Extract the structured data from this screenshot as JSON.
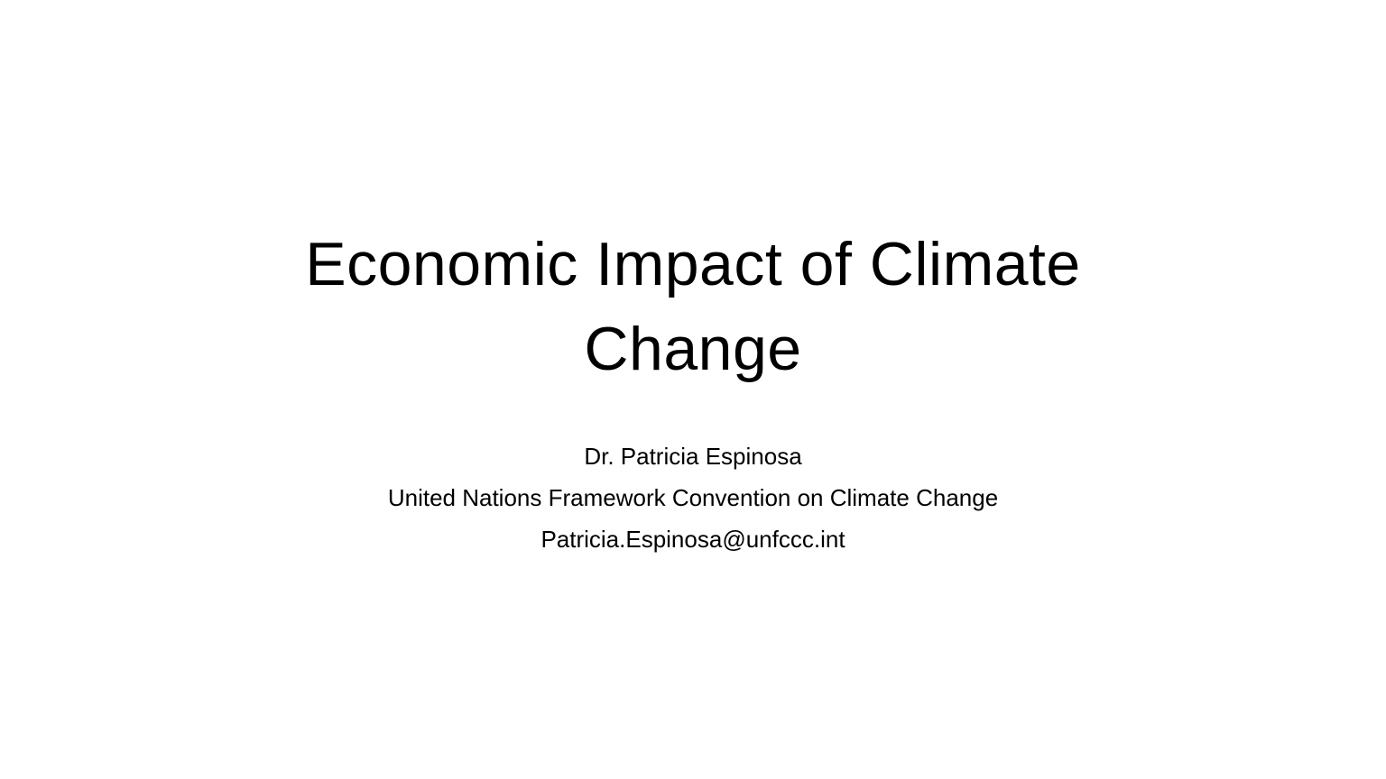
{
  "slide": {
    "title": "Economic Impact of Climate Change",
    "subtitle_lines": [
      "Dr. Patricia Espinosa",
      "United Nations Framework Convention on Climate Change",
      "Patricia.Espinosa@unfccc.int"
    ],
    "colors": {
      "background": "#ffffff",
      "text": "#000000"
    }
  }
}
